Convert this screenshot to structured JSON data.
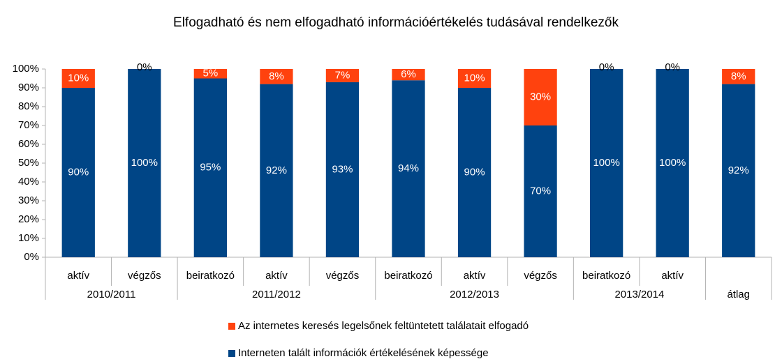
{
  "chart_data": {
    "type": "bar",
    "stacked": true,
    "title": "Elfogadható és nem elfogadható információértékelés tudásával rendelkezők",
    "categories": [
      "aktív",
      "végzős",
      "beiratkozó",
      "aktív",
      "végzős",
      "beiratkozó",
      "aktív",
      "végzős",
      "beiratkozó",
      "aktív",
      null
    ],
    "groups": [
      {
        "label": "2010/2011",
        "span": 2
      },
      {
        "label": "2011/2012",
        "span": 3
      },
      {
        "label": "2012/2013",
        "span": 3
      },
      {
        "label": "2013/2014",
        "span": 2
      },
      {
        "label": "átlag",
        "span": 1
      }
    ],
    "series": [
      {
        "name": "Interneten talált információk értékelésének képessége",
        "color": "#004586",
        "values": [
          90,
          100,
          95,
          92,
          93,
          94,
          90,
          70,
          100,
          100,
          92
        ],
        "value_labels": [
          "90%",
          "100%",
          "95%",
          "92%",
          "93%",
          "94%",
          "90%",
          "70%",
          "100%",
          "100%",
          "92%"
        ]
      },
      {
        "name": "Az internetes keresés legelsőnek feltüntetett találatait elfogadó",
        "color": "#ff420e",
        "values": [
          10,
          0,
          5,
          8,
          7,
          6,
          10,
          30,
          0,
          0,
          8
        ],
        "value_labels": [
          "10%",
          "0%",
          "5%",
          "8%",
          "7%",
          "6%",
          "10%",
          "30%",
          "0%",
          "0%",
          "8%"
        ]
      }
    ],
    "ylim": [
      0,
      100
    ],
    "yticks": [
      {
        "value": 0,
        "label": "0%"
      },
      {
        "value": 10,
        "label": "10%"
      },
      {
        "value": 20,
        "label": "20%"
      },
      {
        "value": 30,
        "label": "30%"
      },
      {
        "value": 40,
        "label": "40%"
      },
      {
        "value": 50,
        "label": "50%"
      },
      {
        "value": 60,
        "label": "60%"
      },
      {
        "value": 70,
        "label": "70%"
      },
      {
        "value": 80,
        "label": "80%"
      },
      {
        "value": 90,
        "label": "90%"
      },
      {
        "value": 100,
        "label": "100%"
      }
    ],
    "grid": false
  }
}
